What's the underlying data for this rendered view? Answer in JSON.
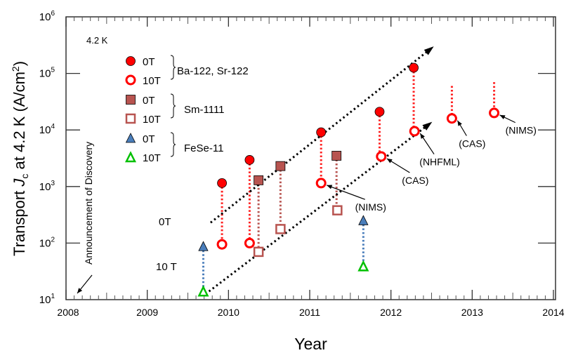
{
  "chart_data": {
    "type": "scatter",
    "xlabel": "Year",
    "ylabel_parts": [
      "Transport ",
      "J",
      "c",
      " at 4.2 K (A/cm",
      "2",
      ")"
    ],
    "xlim": [
      2008,
      2014
    ],
    "ylim": [
      10,
      1000000
    ],
    "yscale": "log",
    "xticks": [
      "2008",
      "2009",
      "2010",
      "2011",
      "2012",
      "2013",
      "2014"
    ],
    "yticks": [
      {
        "base": "10",
        "exp": "1"
      },
      {
        "base": "10",
        "exp": "2"
      },
      {
        "base": "10",
        "exp": "3"
      },
      {
        "base": "10",
        "exp": "4"
      },
      {
        "base": "10",
        "exp": "5"
      },
      {
        "base": "10",
        "exp": "6"
      }
    ],
    "temperature_label": "4.2 K",
    "legend": {
      "placement": "top-left",
      "groups": [
        {
          "name": "Ba-122, Sr-122",
          "entries": [
            "0T",
            "10T"
          ]
        },
        {
          "name": "Sm-1111",
          "entries": [
            "0T",
            "10T"
          ]
        },
        {
          "name": "FeSe-11",
          "entries": [
            "0T",
            "10T"
          ]
        }
      ]
    },
    "colors": {
      "ba_fill": "#ff0000",
      "ba_stroke": "#ff0000",
      "sm_fill": "#b85450",
      "sm_stroke": "#b85450",
      "fese_0T": "#4a7ebb",
      "fese_10T": "#00c000",
      "trend": "#000000"
    },
    "series": [
      {
        "group": "Ba-122, Sr-122",
        "field": "0T",
        "marker": "circle-filled",
        "points": [
          [
            2009.92,
            1150
          ],
          [
            2010.26,
            2950
          ],
          [
            2011.14,
            9100
          ],
          [
            2011.86,
            21000
          ],
          [
            2012.28,
            126000
          ]
        ]
      },
      {
        "group": "Ba-122, Sr-122",
        "field": "10T",
        "marker": "circle-open",
        "points": [
          [
            2009.92,
            95
          ],
          [
            2010.26,
            100
          ],
          [
            2011.14,
            1150
          ],
          [
            2011.88,
            3400
          ],
          [
            2012.29,
            9500
          ],
          [
            2012.75,
            16000
          ],
          [
            2013.27,
            20000
          ]
        ]
      },
      {
        "group": "Sm-1111",
        "field": "0T",
        "marker": "square-filled",
        "points": [
          [
            2010.37,
            1290
          ],
          [
            2010.64,
            2300
          ],
          [
            2011.33,
            3500
          ]
        ]
      },
      {
        "group": "Sm-1111",
        "field": "10T",
        "marker": "square-open",
        "points": [
          [
            2010.37,
            70
          ],
          [
            2010.64,
            177
          ],
          [
            2011.34,
            380
          ]
        ]
      },
      {
        "group": "FeSe-11",
        "field": "0T",
        "marker": "triangle-filled",
        "points": [
          [
            2009.69,
            87
          ],
          [
            2011.66,
            250
          ]
        ]
      },
      {
        "group": "FeSe-11",
        "field": "10T",
        "marker": "triangle-open",
        "points": [
          [
            2009.69,
            14
          ],
          [
            2011.66,
            39
          ]
        ]
      }
    ],
    "drop_lines": [
      {
        "color": "ba",
        "x": 2009.92,
        "from": 1150,
        "to": 95
      },
      {
        "color": "ba",
        "x": 2010.26,
        "from": 2950,
        "to": 100
      },
      {
        "color": "ba",
        "x": 2011.14,
        "from": 9100,
        "to": 1150
      },
      {
        "color": "ba",
        "x": 2011.86,
        "from": 21000,
        "to": 3400
      },
      {
        "color": "ba",
        "x": 2012.28,
        "from": 126000,
        "to": 9500
      },
      {
        "color": "ba",
        "x": 2012.75,
        "from": 60000,
        "to": 16000
      },
      {
        "color": "ba",
        "x": 2013.27,
        "from": 70000,
        "to": 20000
      },
      {
        "color": "sm",
        "x": 2010.37,
        "from": 1290,
        "to": 70
      },
      {
        "color": "sm",
        "x": 2010.64,
        "from": 2300,
        "to": 177
      },
      {
        "color": "sm",
        "x": 2011.33,
        "from": 3500,
        "to": 380
      },
      {
        "color": "fese",
        "x": 2009.69,
        "from": 87,
        "to": 14
      },
      {
        "color": "fese",
        "x": 2011.66,
        "from": 250,
        "to": 39
      }
    ],
    "trend_lines": [
      {
        "label": "0T",
        "from": [
          2009.78,
          230
        ],
        "to": [
          2012.5,
          280000
        ]
      },
      {
        "label": "10 T",
        "from": [
          2009.76,
          14
        ],
        "to": [
          2012.48,
          13000
        ]
      }
    ],
    "annotations": [
      {
        "text": "(NIMS)",
        "point": [
          2011.14,
          1150
        ],
        "at": [
          2011.75,
          420
        ]
      },
      {
        "text": "(CAS)",
        "point": [
          2011.88,
          3400
        ],
        "at": [
          2012.3,
          1250
        ]
      },
      {
        "text": "(NHFML)",
        "point": [
          2012.29,
          9500
        ],
        "at": [
          2012.6,
          2650
        ]
      },
      {
        "text": "(CAS)",
        "point": [
          2012.75,
          16000
        ],
        "at": [
          2013.0,
          5600
        ]
      },
      {
        "text": "(NIMS)",
        "point": [
          2013.27,
          20000
        ],
        "at": [
          2013.6,
          9600
        ]
      }
    ],
    "discovery_label": "Announcement of Discovery"
  }
}
